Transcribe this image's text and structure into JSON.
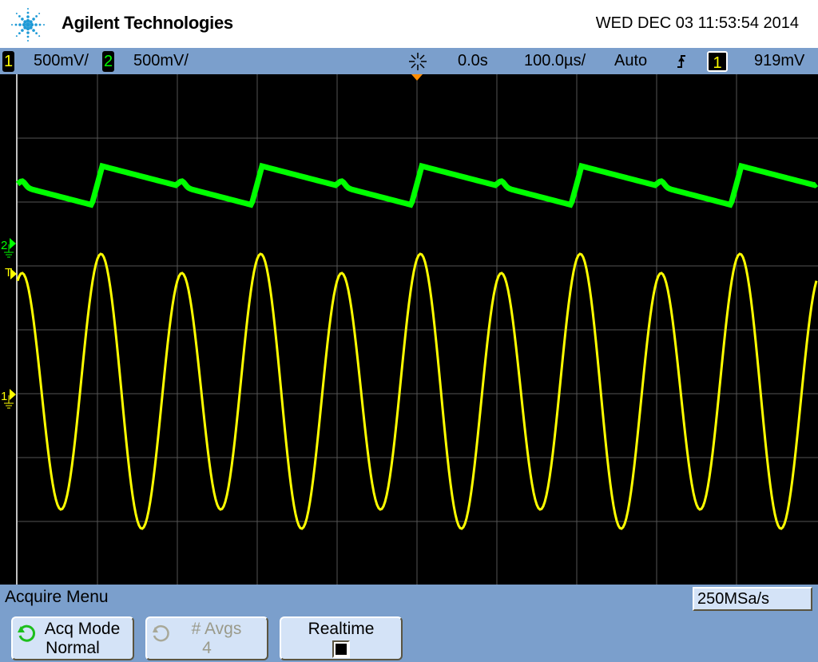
{
  "header": {
    "brand": "Agilent Technologies",
    "datetime": "WED DEC 03 11:53:54 2014"
  },
  "status": {
    "ch1": {
      "num": "1",
      "scale": "500mV/",
      "color": "#ffff00"
    },
    "ch2": {
      "num": "2",
      "scale": "500mV/",
      "color": "#00ff00"
    },
    "time_ref": "0.0s",
    "timebase": "100.0µs/",
    "trigger_mode": "Auto",
    "trigger_slope_icon": "rising-edge-icon",
    "trigger_source": "1",
    "trigger_level": "919mV"
  },
  "markers": {
    "ch2": "2",
    "trigger": "T",
    "ch1": "1"
  },
  "menu": {
    "title": "Acquire Menu",
    "sample_rate": "250MSa/s",
    "softkeys": [
      {
        "label": "Acq Mode",
        "value": "Normal",
        "enabled": true
      },
      {
        "label": "# Avgs",
        "value": "4",
        "enabled": false
      },
      {
        "label": "Realtime",
        "value": "checked",
        "enabled": true
      }
    ]
  },
  "colors": {
    "status_bar": "#7b9fcc",
    "ch1": "#ffff00",
    "ch2": "#00ff00",
    "trigger_marker": "#ff8c00"
  }
}
